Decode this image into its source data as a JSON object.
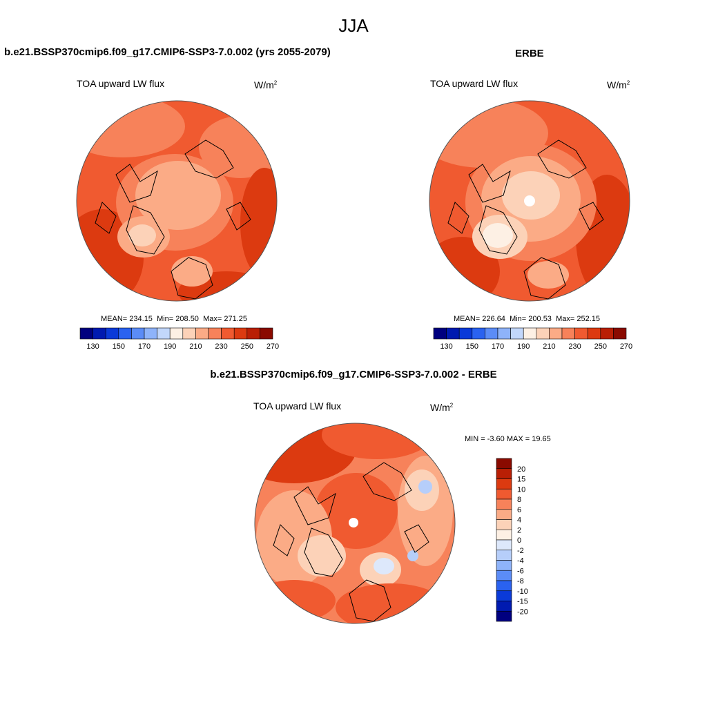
{
  "figure": {
    "title": "JJA",
    "diff_title": "b.e21.BSSP370cmip6.f09_g17.CMIP6-SSP3-7.0.002 - ERBE"
  },
  "panels": [
    {
      "title": "b.e21.BSSP370cmip6.f09_g17.CMIP6-SSP3-7.0.002 (yrs 2055-2079)",
      "variable": "TOA upward LW flux",
      "units_base": "W/m",
      "units_exp": "2",
      "mean_label": "MEAN=",
      "mean": "234.15",
      "min_label": "Min=",
      "min": "208.50",
      "max_label": "Max=",
      "max": "271.25"
    },
    {
      "title": "ERBE",
      "variable": "TOA upward LW flux",
      "units_base": "W/m",
      "units_exp": "2",
      "mean_label": "MEAN=",
      "mean": "226.64",
      "min_label": "Min=",
      "min": "200.53",
      "max_label": "Max=",
      "max": "252.15"
    },
    {
      "variable": "TOA upward LW flux",
      "units_base": "W/m",
      "units_exp": "2",
      "min_label": "MIN =",
      "min": "-3.60",
      "max_label": "MAX =",
      "max": "19.65"
    }
  ],
  "chart_data": [
    {
      "type": "heatmap",
      "projection": "north polar stereographic",
      "colorbar_orientation": "horizontal",
      "colors": [
        "#00007f",
        "#001ab0",
        "#0a3ad8",
        "#2a62f0",
        "#5b8cf7",
        "#8eb3fa",
        "#c2d7fb",
        "#fdf0e4",
        "#fcd2b8",
        "#fbab86",
        "#f7825a",
        "#f05a30",
        "#dc3a10",
        "#b91f05",
        "#8a0a00"
      ],
      "colorbar_labels": [
        "130",
        "150",
        "170",
        "190",
        "210",
        "230",
        "250",
        "270"
      ],
      "mean": 234.15,
      "min": 208.5,
      "max": 271.25
    },
    {
      "type": "heatmap",
      "projection": "north polar stereographic",
      "colorbar_orientation": "horizontal",
      "colors": [
        "#00007f",
        "#001ab0",
        "#0a3ad8",
        "#2a62f0",
        "#5b8cf7",
        "#8eb3fa",
        "#c2d7fb",
        "#fdf0e4",
        "#fcd2b8",
        "#fbab86",
        "#f7825a",
        "#f05a30",
        "#dc3a10",
        "#b91f05",
        "#8a0a00"
      ],
      "colorbar_labels": [
        "130",
        "150",
        "170",
        "190",
        "210",
        "230",
        "250",
        "270"
      ],
      "mean": 226.64,
      "min": 200.53,
      "max": 252.15
    },
    {
      "type": "heatmap",
      "projection": "north polar stereographic",
      "colorbar_orientation": "vertical",
      "colors_top_to_bottom": [
        "#8a0a00",
        "#b91f05",
        "#dc3a10",
        "#f05a30",
        "#f7825a",
        "#fbab86",
        "#fcd2b8",
        "#fdf0e4",
        "#dde8fb",
        "#b6cefa",
        "#8eb3fa",
        "#5b8cf7",
        "#2a62f0",
        "#0a3ad8",
        "#001ab0",
        "#00007f"
      ],
      "colorbar_labels": [
        "20",
        "15",
        "10",
        "8",
        "6",
        "4",
        "2",
        "0",
        "-2",
        "-4",
        "-6",
        "-8",
        "-10",
        "-15",
        "-20"
      ],
      "min": -3.6,
      "max": 19.65
    }
  ]
}
